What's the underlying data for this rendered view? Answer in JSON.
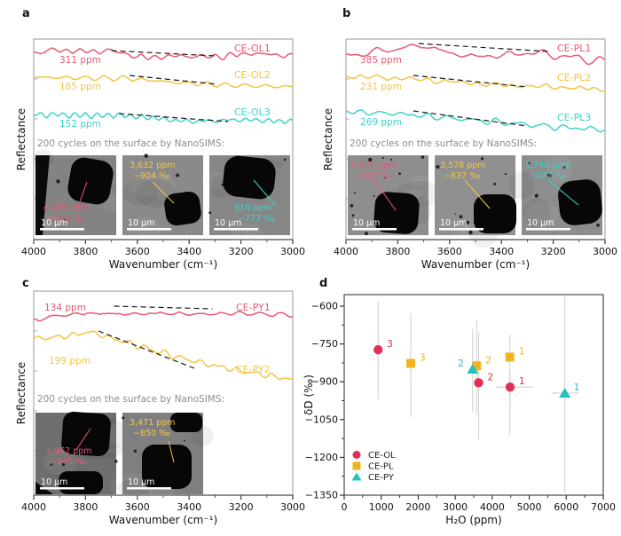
{
  "figure": {
    "background": "#ffffff",
    "panel_letters": [
      "a",
      "b",
      "c",
      "d"
    ]
  },
  "colors": {
    "pink": "#e85a73",
    "pink_marker": "#e03059",
    "yellow": "#f4c445",
    "yellow_marker": "#efb320",
    "cyan": "#3fd2c9",
    "cyan_marker": "#21c2bd",
    "gray_caption": "#8c8c8c",
    "error_bar": "#d2d2d2",
    "axis": "#333333",
    "box_border": "#a9a9a9",
    "dash": "#1a1a1a",
    "sem_text_white": "#ffffff"
  },
  "chart_data": [
    {
      "panel": "a",
      "type": "line",
      "xlabel": "Wavenumber (cm⁻¹)",
      "ylabel": "Reflectance",
      "x_axis": {
        "min": 4000,
        "max": 3000,
        "reversed": true,
        "ticks": [
          4000,
          3800,
          3600,
          3400,
          3200,
          3000
        ]
      },
      "y_axis": {
        "label": "Reflectance",
        "ticks": "none (arbitrary units)"
      },
      "grid": false,
      "series": [
        {
          "name": "CE-OL1",
          "annotation": "311 ppm",
          "color_key": "pink",
          "dashed_guide": true
        },
        {
          "name": "CE-OL2",
          "annotation": "165 ppm",
          "color_key": "yellow",
          "dashed_guide": true
        },
        {
          "name": "CE-OL3",
          "annotation": "152 ppm",
          "color_key": "cyan",
          "dashed_guide": true
        }
      ],
      "nanosims": {
        "caption": "200 cycles on the surface by NanoSIMS:",
        "images": [
          {
            "h2o": "4,483 ppm",
            "dD": "−921 ‰",
            "color_key": "pink",
            "scale": "10 μm"
          },
          {
            "h2o": "3,632 ppm",
            "dD": "−904 ‰",
            "color_key": "yellow",
            "scale": "10 μm"
          },
          {
            "h2o": "916 ppm",
            "dD": "−773 ‰",
            "color_key": "cyan",
            "scale": "10 μm"
          }
        ]
      }
    },
    {
      "panel": "b",
      "type": "line",
      "xlabel": "Wavenumber (cm⁻¹)",
      "ylabel": "Reflectance",
      "x_axis": {
        "min": 4000,
        "max": 3000,
        "reversed": true,
        "ticks": [
          4000,
          3800,
          3600,
          3400,
          3200,
          3000
        ]
      },
      "y_axis": {
        "label": "Reflectance",
        "ticks": "none (arbitrary units)"
      },
      "grid": false,
      "series": [
        {
          "name": "CE-PL1",
          "annotation": "385 ppm",
          "color_key": "pink",
          "dashed_guide": true
        },
        {
          "name": "CE-PL2",
          "annotation": "231 ppm",
          "color_key": "yellow",
          "dashed_guide": true
        },
        {
          "name": "CE-PL3",
          "annotation": "269 ppm",
          "color_key": "cyan",
          "dashed_guide": true
        }
      ],
      "nanosims": {
        "caption": "200 cycles on the surface by NanoSIMS:",
        "images": [
          {
            "h2o": "4,476 ppm",
            "dD": "−802 ‰",
            "color_key": "pink",
            "scale": "10 μm"
          },
          {
            "h2o": "3,578 ppm",
            "dD": "−837 ‰",
            "color_key": "yellow",
            "scale": "10 μm"
          },
          {
            "h2o": "1,798 ppm",
            "dD": "−827 ‰",
            "color_key": "cyan",
            "scale": "10 μm"
          }
        ]
      }
    },
    {
      "panel": "c",
      "type": "line",
      "xlabel": "Wavenumber (cm⁻¹)",
      "ylabel": "Reflectance",
      "x_axis": {
        "min": 4000,
        "max": 3000,
        "reversed": true,
        "ticks": [
          4000,
          3800,
          3600,
          3400,
          3200,
          3000
        ]
      },
      "y_axis": {
        "label": "Reflectance",
        "ticks": "none (arbitrary units)"
      },
      "grid": false,
      "series": [
        {
          "name": "CE-PY1",
          "annotation": "134 ppm",
          "color_key": "pink",
          "dashed_guide": true
        },
        {
          "name": "CE-PY2",
          "annotation": "199 ppm",
          "color_key": "yellow",
          "dashed_guide": true
        }
      ],
      "nanosims": {
        "caption": "200 cycles on the surface by NanoSIMS:",
        "images": [
          {
            "h2o": "5,962 ppm",
            "dD": "−945 ‰",
            "color_key": "pink",
            "scale": "10 μm"
          },
          {
            "h2o": "3,471 ppm",
            "dD": "−850 ‰",
            "color_key": "yellow",
            "scale": "10 μm"
          }
        ]
      }
    },
    {
      "panel": "d",
      "type": "scatter",
      "xlabel": "H₂O (ppm)",
      "ylabel": "δD (‰)",
      "x_axis": {
        "min": 0,
        "max": 7000,
        "ticks": [
          0,
          1000,
          2000,
          3000,
          4000,
          5000,
          6000,
          7000
        ]
      },
      "y_axis": {
        "min": -1350,
        "max": -554,
        "ticks": [
          -600,
          -750,
          -900,
          -1050,
          -1200,
          -1350
        ]
      },
      "grid": false,
      "legend": {
        "position": "bottom-left",
        "items": [
          "CE-OL",
          "CE-PL",
          "CE-PY"
        ]
      },
      "series": [
        {
          "name": "CE-OL",
          "marker": "circle",
          "color_key": "pink_marker",
          "points": [
            {
              "x": 4483,
              "y": -921,
              "label": "1",
              "yerr": [
                -860,
                -995
              ],
              "xerr": [
                4100,
                5110
              ]
            },
            {
              "x": 3632,
              "y": -904,
              "label": "2",
              "yerr": [
                -700,
                -1130
              ]
            },
            {
              "x": 916,
              "y": -773,
              "label": "3",
              "yerr": [
                -580,
                -970
              ]
            }
          ]
        },
        {
          "name": "CE-PL",
          "marker": "square",
          "color_key": "yellow_marker",
          "points": [
            {
              "x": 4476,
              "y": -802,
              "label": "1",
              "yerr": [
                -713,
                -1110
              ]
            },
            {
              "x": 3578,
              "y": -837,
              "label": "2",
              "yerr": [
                -655,
                -1030
              ]
            },
            {
              "x": 1798,
              "y": -827,
              "label": "3",
              "yerr": [
                -630,
                -1040
              ]
            }
          ]
        },
        {
          "name": "CE-PY",
          "marker": "triangle",
          "color_key": "cyan_marker",
          "points": [
            {
              "x": 5962,
              "y": -945,
              "label": "1",
              "yerr": [
                -560,
                -1340
              ],
              "xerr": [
                5600,
                6350
              ]
            },
            {
              "x": 3471,
              "y": -850,
              "label": "2",
              "yerr": [
                -690,
                -1020
              ],
              "label_side": "left"
            }
          ]
        }
      ]
    }
  ]
}
